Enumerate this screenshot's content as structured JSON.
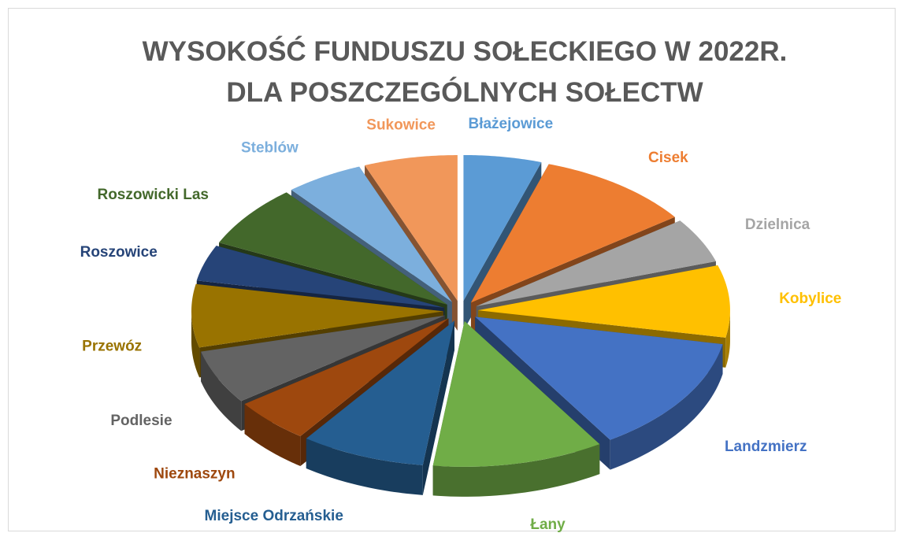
{
  "chart_data": {
    "type": "pie",
    "title": "WYSOKOŚĆ FUNDUSZU SOŁECKIEGO W 2022R. DLA POSZCZEGÓLNYCH SOŁECTW",
    "categories": [
      "Błażejowice",
      "Cisek",
      "Dzielnica",
      "Kobylice",
      "Landzmierz",
      "Łany",
      "Miejsce Odrzańskie",
      "Nieznaszyn",
      "Podlesie",
      "Przewóz",
      "Roszowice",
      "Roszowicki Las",
      "Steblów",
      "Sukowice"
    ],
    "values": [
      5,
      10,
      5,
      8,
      13,
      11,
      8,
      5,
      6,
      7,
      4,
      7,
      5,
      6
    ],
    "colors": [
      "#5b9bd5",
      "#ed7d31",
      "#a5a5a5",
      "#ffc000",
      "#4472c4",
      "#70ad47",
      "#255e91",
      "#9e480e",
      "#636363",
      "#997300",
      "#264478",
      "#43682b",
      "#7cafdd",
      "#f1975a"
    ]
  }
}
